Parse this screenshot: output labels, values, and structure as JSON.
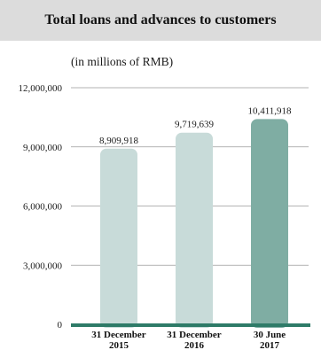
{
  "title": "Total loans and advances to customers",
  "subtitle": "(in millions of RMB)",
  "colors": {
    "title_background": "#dcdcdc",
    "bar_light": "#c8dbd9",
    "bar_highlight": "#7fada3",
    "baseline": "#2e7b68",
    "gridline": "#9a9a9a"
  },
  "chart_data": {
    "type": "bar",
    "title": "Total loans and advances to customers",
    "subtitle": "(in millions of RMB)",
    "categories": [
      [
        "31 December",
        "2015"
      ],
      [
        "31 December",
        "2016"
      ],
      [
        "30 June",
        "2017"
      ]
    ],
    "values": [
      8909918,
      9719639,
      10411918
    ],
    "value_labels": [
      "8,909,918",
      "9,719,639",
      "10,411,918"
    ],
    "highlight_index": 2,
    "ylim": [
      0,
      12000000
    ],
    "yticks": [
      0,
      3000000,
      6000000,
      9000000,
      12000000
    ],
    "ytick_labels": [
      "0",
      "3,000,000",
      "6,000,000",
      "9,000,000",
      "12,000,000"
    ],
    "grid": true,
    "legend": "none"
  }
}
